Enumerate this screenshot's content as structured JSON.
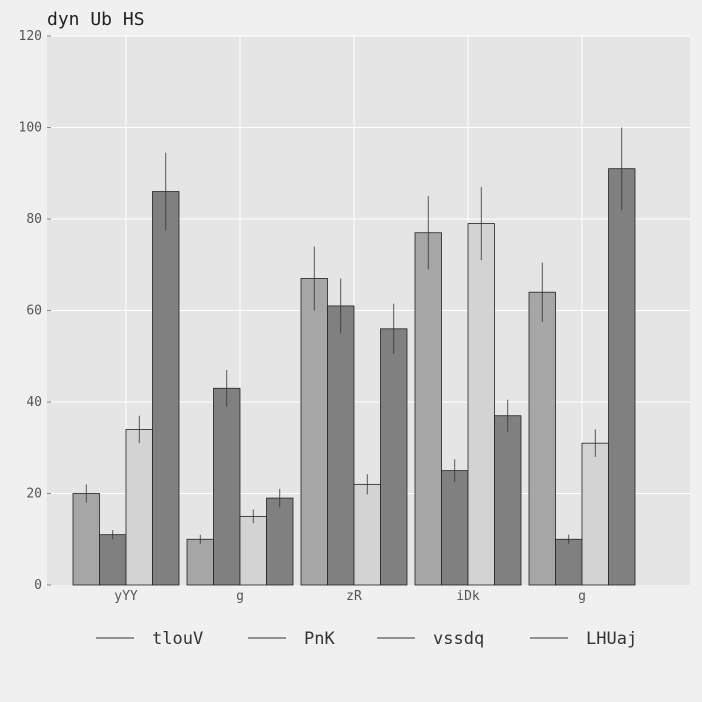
{
  "chart_data": {
    "type": "bar",
    "title": "dyn Ub HS",
    "xlabel": "",
    "ylabel": "",
    "categories": [
      "yYY",
      "g",
      "zR",
      "iDk",
      "g"
    ],
    "ylim": [
      0,
      120
    ],
    "yticks": [
      0,
      20,
      40,
      60,
      80,
      100,
      120
    ],
    "grid": true,
    "legend_position": "bottom",
    "series": [
      {
        "name": "tlouV",
        "values": [
          20,
          10,
          67,
          77,
          64
        ],
        "errors": [
          2,
          1,
          7,
          8,
          6.5
        ],
        "color": "#a6a6a6"
      },
      {
        "name": "PnK",
        "values": [
          11,
          43,
          61,
          25,
          10
        ],
        "errors": [
          1,
          4,
          6,
          2.5,
          1
        ],
        "color": "#808080"
      },
      {
        "name": "vssdq",
        "values": [
          34,
          15,
          22,
          79,
          31
        ],
        "errors": [
          3,
          1.5,
          2.2,
          8,
          3
        ],
        "color": "#d3d3d3"
      },
      {
        "name": "LHUaj",
        "values": [
          86,
          19,
          56,
          37,
          91
        ],
        "errors": [
          8.5,
          2,
          5.5,
          3.5,
          9
        ],
        "color": "#808080"
      }
    ]
  }
}
